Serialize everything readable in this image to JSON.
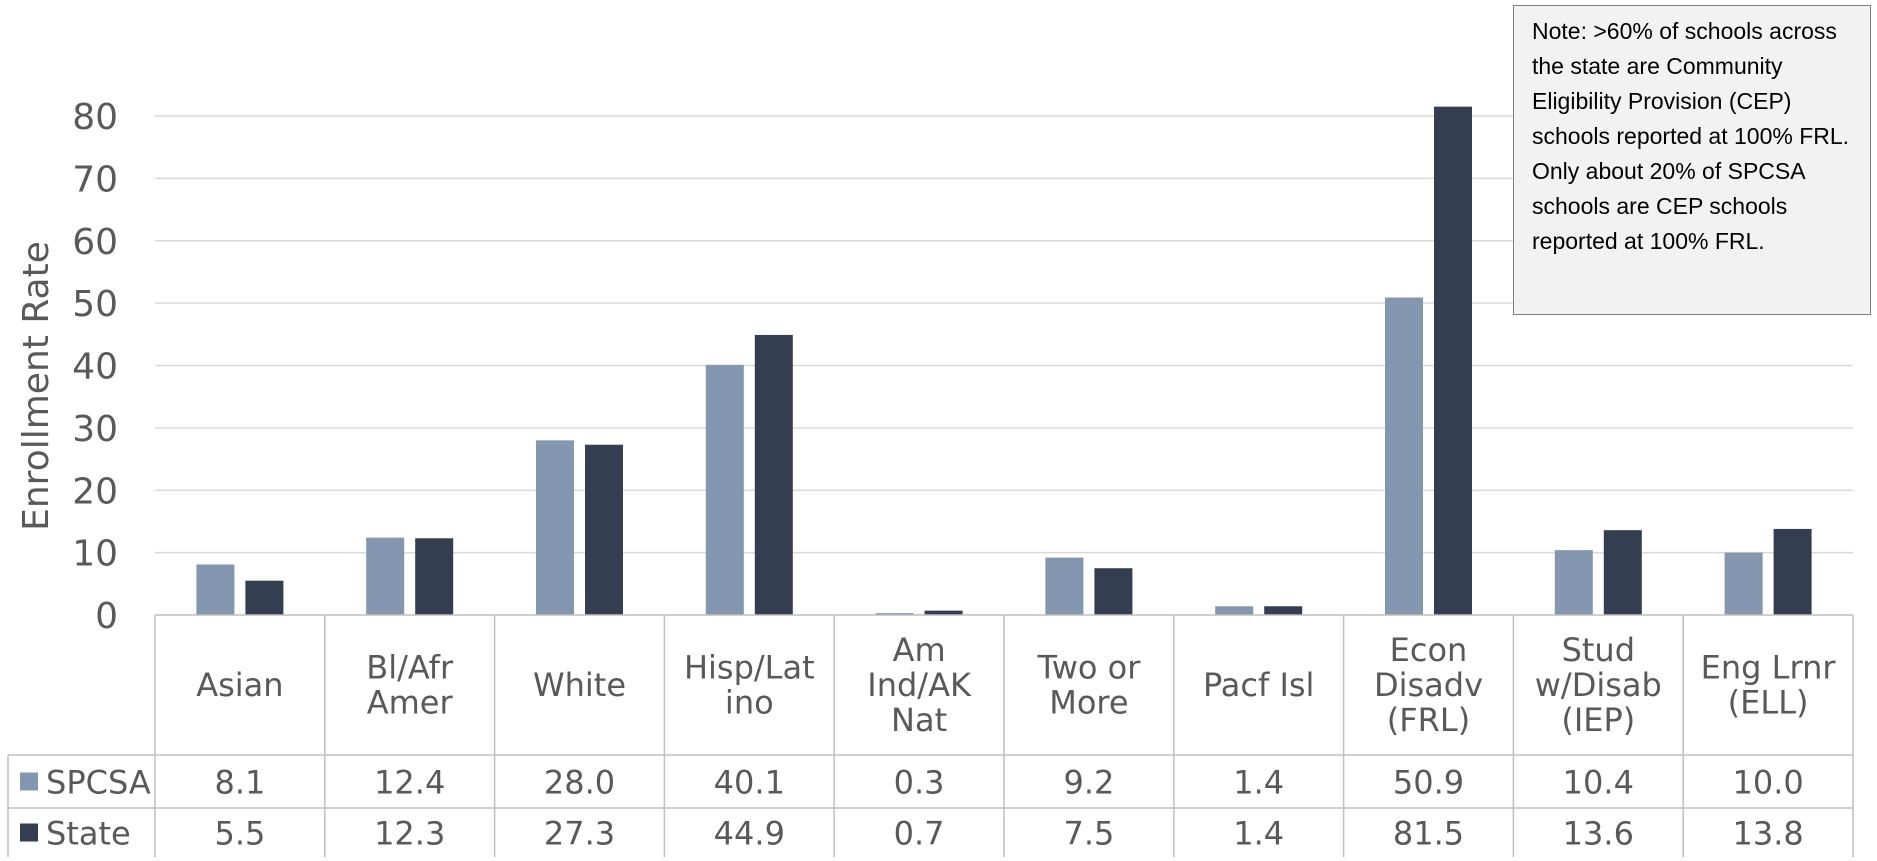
{
  "chart_data": {
    "type": "bar",
    "ylabel": "Enrollment Rate",
    "xlabel": "",
    "ylim": [
      0,
      80
    ],
    "yticks": [
      "0",
      "10",
      "20",
      "30",
      "40",
      "50",
      "60",
      "70",
      "80"
    ],
    "grid": true,
    "categories": [
      [
        "Asian"
      ],
      [
        "Bl/Afr",
        "Amer"
      ],
      [
        "White"
      ],
      [
        "Hisp/Lat",
        "ino"
      ],
      [
        "Am",
        "Ind/AK",
        "Nat"
      ],
      [
        "Two or",
        "More"
      ],
      [
        "Pacf Isl"
      ],
      [
        "Econ",
        "Disadv",
        "(FRL)"
      ],
      [
        "Stud",
        "w/Disab",
        "(IEP)"
      ],
      [
        "Eng Lrnr",
        "(ELL)"
      ]
    ],
    "series": [
      {
        "name": "SPCSA",
        "color": "#8497b0",
        "values": [
          8.1,
          12.4,
          28.0,
          40.1,
          0.3,
          9.2,
          1.4,
          50.9,
          10.4,
          10.0
        ],
        "labels": [
          "8.1",
          "12.4",
          "28.0",
          "40.1",
          "0.3",
          "9.2",
          "1.4",
          "50.9",
          "10.4",
          "10.0"
        ]
      },
      {
        "name": "State",
        "color": "#333f50",
        "values": [
          5.5,
          12.3,
          27.3,
          44.9,
          0.7,
          7.5,
          1.4,
          81.5,
          13.6,
          13.8
        ],
        "labels": [
          "5.5",
          "12.3",
          "27.3",
          "44.9",
          "0.7",
          "7.5",
          "1.4",
          "81.5",
          "13.6",
          "13.8"
        ]
      }
    ]
  },
  "note": {
    "text": "Note: >60% of schools across the state are Community Eligibility Provision (CEP) schools reported at 100% FRL. Only about 20% of SPCSA schools are CEP schools reported at 100% FRL."
  }
}
